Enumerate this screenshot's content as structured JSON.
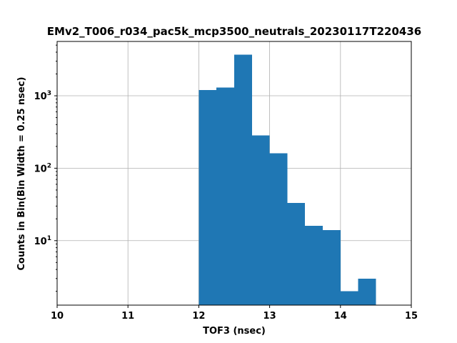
{
  "chart_data": {
    "type": "bar",
    "title": "EMv2_T006_r034_pac5k_mcp3500_neutrals_20230117T220436",
    "xlabel": "TOF3 (nsec)",
    "ylabel": "Counts in Bin(Bin Width = 0.25 nsec)",
    "xlim": [
      10,
      15
    ],
    "ylim_log10": [
      0.11,
      3.75
    ],
    "yscale": "log",
    "grid": true,
    "bar_color": "#1f77b4",
    "x_ticks": [
      {
        "value": 10,
        "label": "10"
      },
      {
        "value": 11,
        "label": "11"
      },
      {
        "value": 12,
        "label": "12"
      },
      {
        "value": 13,
        "label": "13"
      },
      {
        "value": 14,
        "label": "14"
      },
      {
        "value": 15,
        "label": "15"
      }
    ],
    "y_ticks": [
      {
        "value": 10,
        "base": "10",
        "exp": "1"
      },
      {
        "value": 100,
        "base": "10",
        "exp": "2"
      },
      {
        "value": 1000,
        "base": "10",
        "exp": "3"
      }
    ],
    "bins": [
      {
        "x0": 12.0,
        "x1": 12.25,
        "count": 1200
      },
      {
        "x0": 12.25,
        "x1": 12.5,
        "count": 1300
      },
      {
        "x0": 12.5,
        "x1": 12.75,
        "count": 3700
      },
      {
        "x0": 12.75,
        "x1": 13.0,
        "count": 285
      },
      {
        "x0": 13.0,
        "x1": 13.25,
        "count": 160
      },
      {
        "x0": 13.25,
        "x1": 13.5,
        "count": 33
      },
      {
        "x0": 13.5,
        "x1": 13.75,
        "count": 16
      },
      {
        "x0": 13.75,
        "x1": 14.0,
        "count": 14
      },
      {
        "x0": 14.0,
        "x1": 14.25,
        "count": 2
      },
      {
        "x0": 14.25,
        "x1": 14.5,
        "count": 3
      }
    ]
  }
}
